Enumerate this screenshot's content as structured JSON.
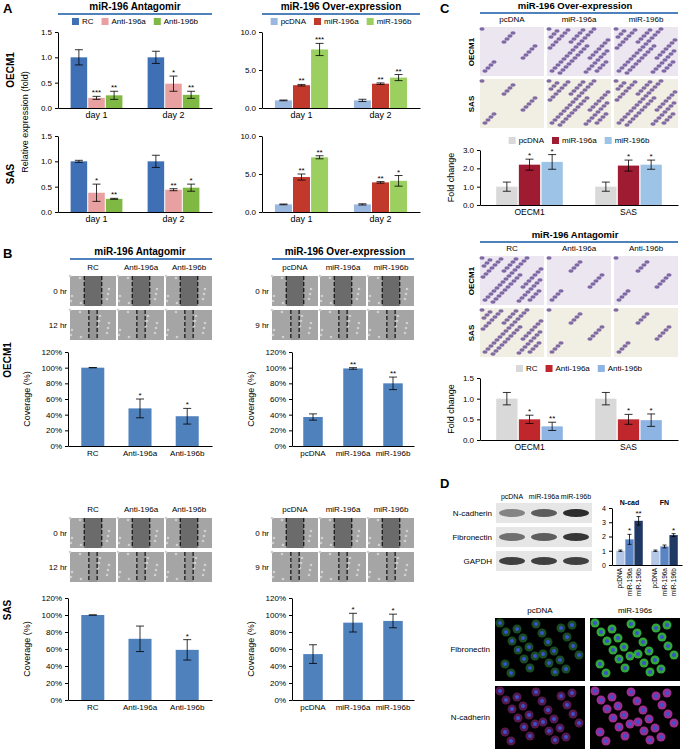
{
  "figure": {
    "panel_labels": [
      "A",
      "B",
      "C",
      "D"
    ],
    "A": {
      "headers": [
        "miR-196 Antagomir",
        "miR-196 Over-expression"
      ],
      "rows": [
        "OECM1",
        "SAS"
      ],
      "ylabel": "Relative expression (fold)"
    },
    "B": {
      "headers": [
        "miR-196 Antagomir",
        "miR-196 Over-expression"
      ],
      "rows": [
        "OECM1",
        "SAS"
      ],
      "antagomir_columns": [
        "RC",
        "Anti-196a",
        "Anti-196b"
      ],
      "antagomir_times": [
        "0 hr",
        "12 hr"
      ],
      "over_columns": [
        "pcDNA",
        "miR-196a",
        "miR-196b"
      ],
      "over_times": [
        "0 hr",
        "9 hr"
      ]
    },
    "C": {
      "over_title": "miR-196 Over-expression",
      "over_columns": [
        "pcDNA",
        "miR-196a",
        "miR-196b"
      ],
      "antagomir_title": "miR-196 Antagomir",
      "antagomir_columns": [
        "RC",
        "Anti-196a",
        "Anti-196b"
      ],
      "rows": [
        "OECM1",
        "SAS"
      ]
    },
    "D": {
      "blot_columns": [
        "pcDNA",
        "miR-196a",
        "miR-196b"
      ],
      "blot_rows": [
        "N-cadherin",
        "Fibronectin",
        "GAPDH"
      ],
      "if_columns": [
        "pcDNA",
        "miR-196s"
      ],
      "if_rows": [
        "Fibronectin",
        "N-cadherin"
      ]
    }
  },
  "chart_data": [
    {
      "type": "bar",
      "categories": [
        "day 1",
        "day 2"
      ],
      "ylim": [
        0,
        1.5
      ],
      "yticks": [
        {
          "value": 0,
          "label": "0.0"
        },
        0.5,
        {
          "value": 1,
          "label": "1.0"
        },
        1.5
      ],
      "legend": "top",
      "series": [
        {
          "name": "RC",
          "color": "#3f6fb5",
          "values": [
            1.0,
            1.0
          ],
          "errors": [
            0.15,
            0.12
          ],
          "significance": [
            null,
            null
          ]
        },
        {
          "name": "Anti-196a",
          "color": "#e8a0a0",
          "values": [
            0.2,
            0.48
          ],
          "errors": [
            0.03,
            0.15
          ],
          "significance": [
            "***",
            "*"
          ]
        },
        {
          "name": "Anti-196b",
          "color": "#7fb843",
          "values": [
            0.25,
            0.26
          ],
          "errors": [
            0.08,
            0.07
          ],
          "significance": [
            "**",
            "**"
          ]
        }
      ]
    },
    {
      "type": "bar",
      "categories": [
        "day 1",
        "day 2"
      ],
      "ylim": [
        0,
        10
      ],
      "yticks": [
        {
          "value": 0,
          "label": "0.0"
        },
        {
          "value": 5,
          "label": "5.0"
        },
        {
          "value": 10,
          "label": "10.0"
        }
      ],
      "legend": "top",
      "series": [
        {
          "name": "pcDNA",
          "color": "#9ab7df",
          "values": [
            1.0,
            1.0
          ],
          "errors": [
            0.05,
            0.15
          ],
          "significance": [
            null,
            null
          ]
        },
        {
          "name": "miR-196a",
          "color": "#c0392b",
          "values": [
            3.0,
            3.2
          ],
          "errors": [
            0.1,
            0.1
          ],
          "significance": [
            "**",
            "**"
          ]
        },
        {
          "name": "miR-196b",
          "color": "#9bd061",
          "values": [
            7.7,
            4.0
          ],
          "errors": [
            0.8,
            0.4
          ],
          "significance": [
            "***",
            "**"
          ]
        }
      ]
    },
    {
      "type": "bar",
      "categories": [
        "day 1",
        "day 2"
      ],
      "ylim": [
        0,
        1.5
      ],
      "yticks": [
        {
          "value": 0,
          "label": "0.0"
        },
        0.5,
        {
          "value": 1,
          "label": "1.0"
        },
        1.5
      ],
      "series": [
        {
          "color": "#3f6fb5",
          "values": [
            1.0,
            1.0
          ],
          "errors": [
            0.02,
            0.12
          ],
          "significance": [
            null,
            null
          ]
        },
        {
          "color": "#e8a0a0",
          "values": [
            0.38,
            0.44
          ],
          "errors": [
            0.17,
            0.02
          ],
          "significance": [
            "*",
            "**"
          ]
        },
        {
          "color": "#7fb843",
          "values": [
            0.26,
            0.48
          ],
          "errors": [
            0.01,
            0.07
          ],
          "significance": [
            "**",
            "*"
          ]
        }
      ]
    },
    {
      "type": "bar",
      "categories": [
        "day 1",
        "day 2"
      ],
      "ylim": [
        0,
        10
      ],
      "yticks": [
        {
          "value": 0,
          "label": "0.0"
        },
        {
          "value": 5,
          "label": "5.0"
        },
        {
          "value": 10,
          "label": "10.0"
        }
      ],
      "series": [
        {
          "color": "#9ab7df",
          "values": [
            1.0,
            1.0
          ],
          "errors": [
            0.05,
            0.08
          ],
          "significance": [
            null,
            null
          ]
        },
        {
          "color": "#c0392b",
          "values": [
            4.6,
            3.9
          ],
          "errors": [
            0.4,
            0.1
          ],
          "significance": [
            "**",
            "**"
          ]
        },
        {
          "color": "#9bd061",
          "values": [
            7.2,
            4.1
          ],
          "errors": [
            0.2,
            0.7
          ],
          "significance": [
            "**",
            "*"
          ]
        }
      ]
    },
    {
      "type": "bar",
      "ylabel": "Coverage (%)",
      "categories": [
        "RC",
        "Anti-196a",
        "Anti-196b"
      ],
      "ylim": [
        0,
        120
      ],
      "yticks": [
        {
          "value": 0,
          "label": "0%"
        },
        {
          "value": 20,
          "label": "20%"
        },
        {
          "value": 40,
          "label": "40%"
        },
        {
          "value": 60,
          "label": "60%"
        },
        {
          "value": 80,
          "label": "80%"
        },
        {
          "value": 100,
          "label": "100%"
        },
        {
          "value": 120,
          "label": "120%"
        }
      ],
      "series": [
        {
          "color": "#4f81bd",
          "values": [
            100,
            48,
            38
          ],
          "errors": [
            0,
            12,
            10
          ],
          "significance": [
            null,
            "*",
            "*"
          ]
        }
      ]
    },
    {
      "type": "bar",
      "ylabel": "Coverage (%)",
      "categories": [
        "pcDNA",
        "miR-196a",
        "miR-196b"
      ],
      "ylim": [
        0,
        120
      ],
      "yticks": [
        {
          "value": 0,
          "label": "0%"
        },
        {
          "value": 20,
          "label": "20%"
        },
        {
          "value": 40,
          "label": "40%"
        },
        {
          "value": 60,
          "label": "60%"
        },
        {
          "value": 80,
          "label": "80%"
        },
        {
          "value": 100,
          "label": "100%"
        },
        {
          "value": 120,
          "label": "120%"
        }
      ],
      "series": [
        {
          "color": "#4f81bd",
          "values": [
            37,
            99,
            80
          ],
          "errors": [
            4,
            1,
            8
          ],
          "significance": [
            null,
            "**",
            "**"
          ]
        }
      ]
    },
    {
      "type": "bar",
      "ylabel": "Coverage (%)",
      "categories": [
        "RC",
        "Anti-196a",
        "Anti-196b"
      ],
      "ylim": [
        0,
        120
      ],
      "yticks": [
        {
          "value": 0,
          "label": "0%"
        },
        {
          "value": 20,
          "label": "20%"
        },
        {
          "value": 40,
          "label": "40%"
        },
        {
          "value": 60,
          "label": "60%"
        },
        {
          "value": 80,
          "label": "80%"
        },
        {
          "value": 100,
          "label": "100%"
        },
        {
          "value": 120,
          "label": "120%"
        }
      ],
      "series": [
        {
          "color": "#4f81bd",
          "values": [
            100,
            72,
            59
          ],
          "errors": [
            0,
            15,
            12
          ],
          "significance": [
            null,
            null,
            "*"
          ]
        }
      ]
    },
    {
      "type": "bar",
      "ylabel": "Coverage (%)",
      "categories": [
        "pcDNA",
        "miR-196a",
        "miR-196b"
      ],
      "ylim": [
        0,
        120
      ],
      "yticks": [
        {
          "value": 0,
          "label": "0%"
        },
        {
          "value": 20,
          "label": "20%"
        },
        {
          "value": 40,
          "label": "40%"
        },
        {
          "value": 60,
          "label": "60%"
        },
        {
          "value": 80,
          "label": "80%"
        },
        {
          "value": 100,
          "label": "100%"
        },
        {
          "value": 120,
          "label": "120%"
        }
      ],
      "series": [
        {
          "color": "#4f81bd",
          "values": [
            54,
            91,
            93
          ],
          "errors": [
            11,
            11,
            8
          ],
          "significance": [
            null,
            "*",
            "*"
          ]
        }
      ]
    },
    {
      "type": "bar",
      "ylabel": "Fold change",
      "categories": [
        "OECM1",
        "SAS"
      ],
      "ylim": [
        0,
        3
      ],
      "yticks": [
        {
          "value": 0,
          "label": "0.0"
        },
        {
          "value": 1,
          "label": "1.0"
        },
        {
          "value": 2,
          "label": "2.0"
        },
        {
          "value": 3,
          "label": "3.0"
        }
      ],
      "legend": "top",
      "series": [
        {
          "name": "pcDNA",
          "color": "#d9d9d9",
          "values": [
            1.0,
            1.0
          ],
          "errors": [
            0.25,
            0.25
          ],
          "significance": [
            null,
            null
          ]
        },
        {
          "name": "miR-196a",
          "color": "#9e1b32",
          "values": [
            2.2,
            2.15
          ],
          "errors": [
            0.3,
            0.3
          ],
          "significance": [
            "*",
            "*"
          ]
        },
        {
          "name": "miR-196b",
          "color": "#9dc3e6",
          "values": [
            2.35,
            2.2
          ],
          "errors": [
            0.4,
            0.25
          ],
          "significance": [
            "*",
            "*"
          ]
        }
      ]
    },
    {
      "type": "bar",
      "ylabel": "Fold change",
      "categories": [
        "OECM1",
        "SAS"
      ],
      "ylim": [
        0,
        1.5
      ],
      "yticks": [
        {
          "value": 0,
          "label": "0.0"
        },
        0.5,
        {
          "value": 1,
          "label": "1.0"
        },
        1.5
      ],
      "legend": "top",
      "series": [
        {
          "name": "RC",
          "color": "#d9d9d9",
          "values": [
            1.0,
            1.0
          ],
          "errors": [
            0.15,
            0.15
          ],
          "significance": [
            null,
            null
          ]
        },
        {
          "name": "Anti-196a",
          "color": "#c0272d",
          "values": [
            0.5,
            0.5
          ],
          "errors": [
            0.1,
            0.12
          ],
          "significance": [
            "*",
            "*"
          ]
        },
        {
          "name": "Anti-196b",
          "color": "#8eb4e3",
          "values": [
            0.33,
            0.48
          ],
          "errors": [
            0.1,
            0.15
          ],
          "significance": [
            "**",
            "*"
          ]
        }
      ]
    },
    {
      "type": "bar",
      "categories": [
        "pcDNA",
        "miR-196a",
        "miR-196b"
      ],
      "colors": [
        "#b4c7e7",
        "#5b84c4",
        "#203864"
      ],
      "ylim": [
        0,
        4
      ],
      "yticks": [
        0,
        1,
        2,
        3,
        4
      ],
      "series": [
        {
          "name": "N-cad",
          "values": [
            1.0,
            1.8,
            3.1
          ],
          "errors": [
            0.05,
            0.35,
            0.3
          ],
          "significance": [
            null,
            "*",
            "**"
          ]
        },
        {
          "name": "FN",
          "values": [
            1.0,
            1.3,
            2.1
          ],
          "errors": [
            0.05,
            0.1,
            0.1
          ],
          "significance": [
            null,
            null,
            "*"
          ]
        }
      ]
    }
  ]
}
